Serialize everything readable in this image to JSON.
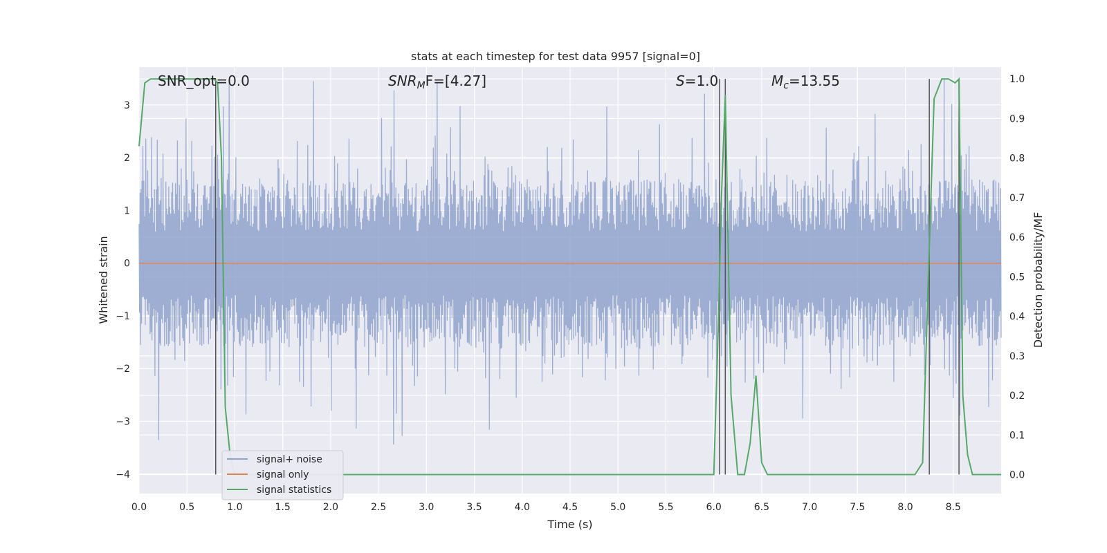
{
  "chart_data": {
    "type": "line",
    "title": "stats at each timestep for test data 9957 [signal=0]",
    "xlabel": "Time (s)",
    "ylabel_left": "Whitened strain",
    "ylabel_right": "Detection probability/MF",
    "xlim": [
      0.0,
      9.0
    ],
    "ylim_left": [
      -4.37,
      3.72
    ],
    "ylim_right": [
      -0.048,
      1.03
    ],
    "grid": true,
    "legend_position": "lower-left",
    "x_ticks": [
      "0.0",
      "0.5",
      "1.0",
      "1.5",
      "2.0",
      "2.5",
      "3.0",
      "3.5",
      "4.0",
      "4.5",
      "5.0",
      "5.5",
      "6.0",
      "6.5",
      "7.0",
      "7.5",
      "8.0",
      "8.5"
    ],
    "y_left_ticks": [
      "3",
      "2",
      "1",
      "0",
      "−1",
      "−2",
      "−3",
      "−4"
    ],
    "y_right_ticks": [
      "1.0",
      "0.9",
      "0.8",
      "0.7",
      "0.6",
      "0.5",
      "0.4",
      "0.3",
      "0.2",
      "0.1",
      "0.0"
    ],
    "annotations": {
      "snr_opt": "SNR_opt=0.0",
      "snr_mf_main": "SNR",
      "snr_mf_sub": "M",
      "snr_mf_rest": "F=[4.27]",
      "s_italic": "S",
      "s_rest": "=1.0",
      "mc_main": "M",
      "mc_sub": "c",
      "mc_rest": "=13.55"
    },
    "series": [
      {
        "name": "signal+ noise",
        "color": "#8fa3cc",
        "axis": "left",
        "envelope": {
          "typical_min": -1.3,
          "typical_max": 1.3,
          "peak_min": -4.0,
          "peak_max": 3.55
        }
      },
      {
        "name": "signal only",
        "color": "#dd8452",
        "axis": "left",
        "x": [
          0.0,
          9.0
        ],
        "y": [
          0.0,
          0.0
        ]
      },
      {
        "name": "signal statistics",
        "color": "#55a868",
        "axis": "right",
        "x": [
          0.0,
          0.06,
          0.12,
          0.2,
          0.4,
          0.6,
          0.78,
          0.82,
          0.86,
          0.9,
          0.95,
          1.0,
          2.0,
          3.0,
          4.0,
          5.0,
          5.8,
          6.0,
          6.05,
          6.08,
          6.12,
          6.18,
          6.25,
          6.32,
          6.38,
          6.44,
          6.5,
          6.56,
          6.65,
          7.0,
          8.0,
          8.1,
          8.18,
          8.24,
          8.3,
          8.38,
          8.45,
          8.52,
          8.56,
          8.6,
          8.65,
          8.7,
          8.8,
          9.0
        ],
        "y": [
          0.83,
          0.99,
          1.0,
          1.0,
          1.0,
          1.0,
          1.0,
          0.99,
          0.8,
          0.17,
          0.05,
          0.0,
          0.0,
          0.0,
          0.0,
          0.0,
          0.0,
          0.0,
          0.4,
          0.7,
          0.96,
          0.2,
          0.0,
          0.0,
          0.08,
          0.25,
          0.03,
          0.0,
          0.0,
          0.0,
          0.0,
          0.0,
          0.03,
          0.5,
          0.95,
          1.0,
          1.0,
          0.99,
          1.0,
          0.2,
          0.05,
          0.0,
          0.0,
          0.0
        ]
      }
    ],
    "vertical_lines_x": [
      0.8,
      6.06,
      6.12,
      8.25,
      8.56
    ],
    "legend": [
      "signal+ noise",
      "signal only",
      "signal statistics"
    ]
  }
}
